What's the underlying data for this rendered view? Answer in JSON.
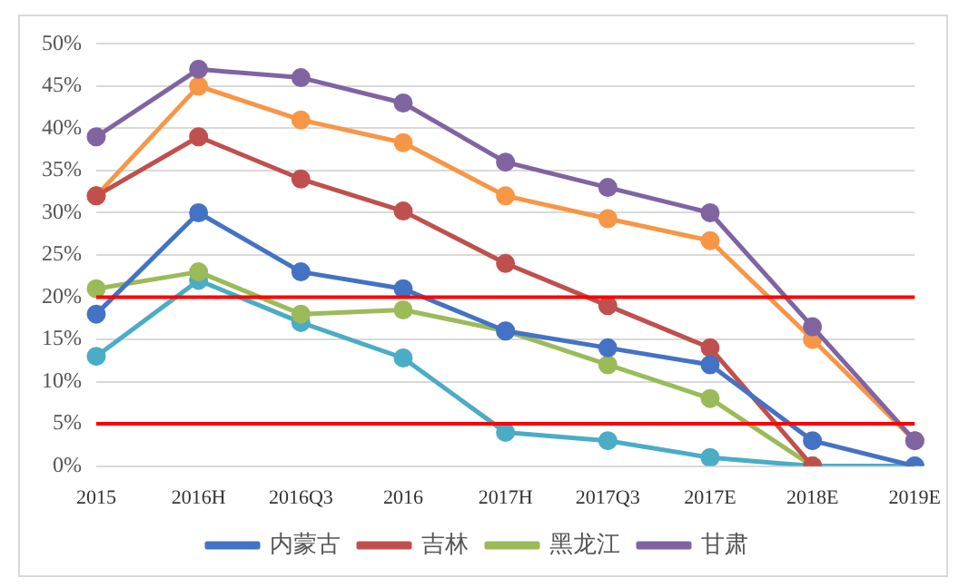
{
  "chart_data": {
    "type": "line",
    "categories": [
      "2015",
      "2016H",
      "2016Q3",
      "2016",
      "2017H",
      "2017Q3",
      "2017E",
      "2018E",
      "2019E"
    ],
    "series": [
      {
        "name": "内蒙古",
        "color": "#4472c4",
        "values": [
          18,
          30,
          23,
          21,
          16,
          14,
          12,
          3,
          0
        ]
      },
      {
        "name": "吉林",
        "color": "#c0504d",
        "values": [
          32,
          39,
          34,
          30.2,
          24,
          19,
          14,
          0,
          null
        ]
      },
      {
        "name": "黑龙江",
        "color": "#9bbb59",
        "values": [
          21,
          23,
          18,
          18.5,
          16,
          12,
          8,
          0,
          null
        ]
      },
      {
        "name": "甘肃",
        "color": "#8064a2",
        "values": [
          39,
          47,
          46,
          43,
          36,
          33,
          30,
          16.5,
          3
        ]
      },
      {
        "color": "#4bacc6",
        "values": [
          13,
          22,
          17,
          12.8,
          4,
          3,
          1,
          0,
          0
        ]
      },
      {
        "color": "#f79646",
        "values": [
          32,
          45,
          41,
          38.3,
          32,
          29.3,
          26.7,
          15,
          3
        ]
      }
    ],
    "ylim": [
      0,
      50
    ],
    "yticks": [
      {
        "value": 0,
        "label": "0%"
      },
      {
        "value": 5,
        "label": "5%"
      },
      {
        "value": 10,
        "label": "10%"
      },
      {
        "value": 15,
        "label": "15%"
      },
      {
        "value": 20,
        "label": "20%"
      },
      {
        "value": 25,
        "label": "25%"
      },
      {
        "value": 30,
        "label": "30%"
      },
      {
        "value": 35,
        "label": "35%"
      },
      {
        "value": 40,
        "label": "40%"
      },
      {
        "value": 45,
        "label": "45%"
      },
      {
        "value": 50,
        "label": "50%"
      }
    ],
    "ref_lines": [
      {
        "axis": "y",
        "value": 20,
        "color": "#ff0000"
      },
      {
        "axis": "y",
        "value": 5,
        "color": "#ff0000"
      }
    ],
    "grid": "y",
    "legend": "bottom",
    "marker": "circle",
    "line_style": "solid"
  }
}
